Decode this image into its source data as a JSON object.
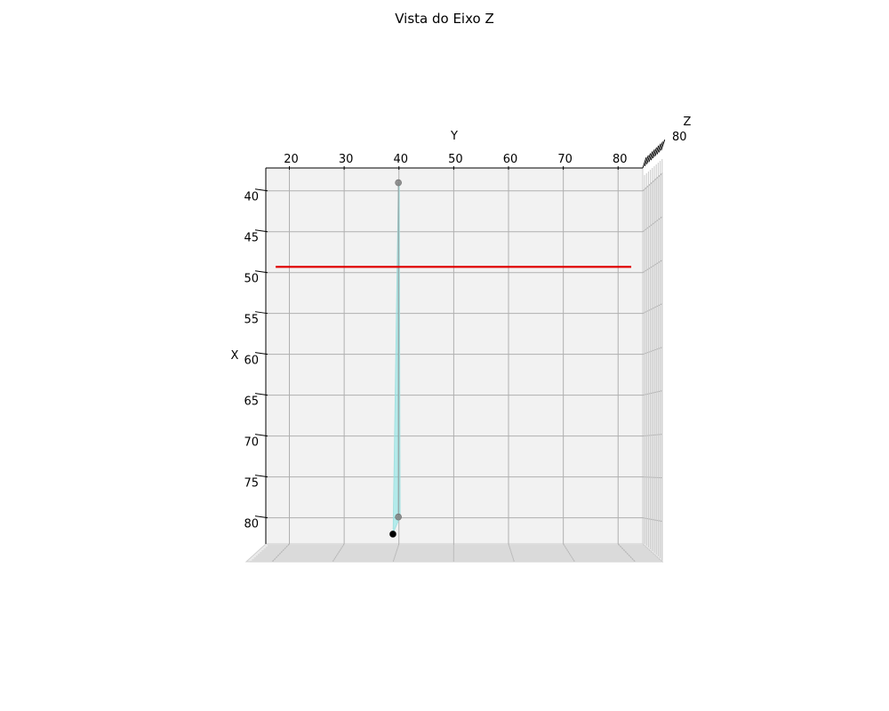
{
  "chart_data": {
    "type": "3d-line",
    "title": "Vista do Eixo Z",
    "xlabel": "X",
    "ylabel": "Y",
    "zlabel": "Z",
    "x_ticks": [
      "40",
      "45",
      "50",
      "55",
      "60",
      "65",
      "70",
      "75",
      "80"
    ],
    "y_ticks": [
      "20",
      "30",
      "40",
      "50",
      "60",
      "70",
      "80"
    ],
    "z_tick_visible": "80",
    "xlim": [
      37.2,
      83.2
    ],
    "ylim": [
      15.7,
      84.5
    ],
    "grid": true,
    "series": [
      {
        "kind": "shaded-segment",
        "color": "#7fe5e5",
        "points": [
          {
            "x": 39.0,
            "y": 39.9
          },
          {
            "x": 79.9,
            "y": 39.9
          }
        ]
      },
      {
        "kind": "line",
        "color": "#e00000",
        "points": [
          {
            "x": 49.3,
            "y": 17.5
          },
          {
            "x": 49.3,
            "y": 82.4
          }
        ]
      },
      {
        "kind": "markers",
        "color": "#808080",
        "points": [
          {
            "x": 39.0,
            "y": 39.9
          },
          {
            "x": 79.9,
            "y": 39.9
          }
        ]
      },
      {
        "kind": "markers",
        "color": "#000000",
        "points": [
          {
            "x": 82.0,
            "y": 38.9
          }
        ]
      }
    ]
  }
}
